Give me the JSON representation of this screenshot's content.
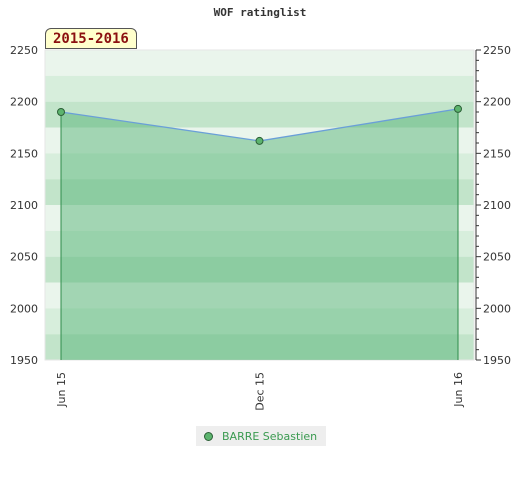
{
  "title": "WOF ratinglist",
  "season_badge": "2015-2016",
  "chart_data": {
    "type": "area",
    "title": "WOF ratinglist",
    "x": [
      "Jun 15",
      "Dec 15",
      "Jun 16"
    ],
    "series": [
      {
        "name": "BARRE Sebastien",
        "values": [
          2190,
          2162,
          2193
        ]
      }
    ],
    "ylim": [
      1950,
      2250
    ],
    "yticks": [
      1950,
      2000,
      2050,
      2100,
      2150,
      2200,
      2250
    ],
    "xticks": [
      "Jun 15",
      "Dec 15",
      "Jun 16"
    ],
    "legend": "bottom-center",
    "grid": true,
    "colors": {
      "fill": "#4caf6e",
      "line": "#6a9fd8",
      "marker": "#5cb46e",
      "stroke": "#2e8b4a"
    }
  },
  "legend": {
    "label": "BARRE Sebastien"
  }
}
